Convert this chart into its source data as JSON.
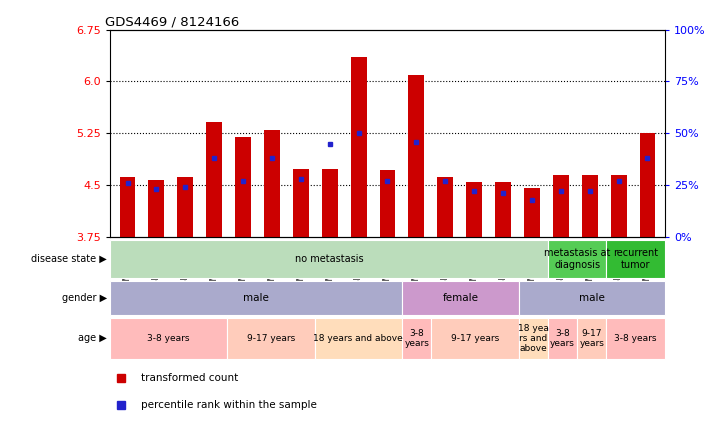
{
  "title": "GDS4469 / 8124166",
  "samples": [
    "GSM1025530",
    "GSM1025531",
    "GSM1025532",
    "GSM1025546",
    "GSM1025535",
    "GSM1025544",
    "GSM1025545",
    "GSM1025537",
    "GSM1025542",
    "GSM1025543",
    "GSM1025540",
    "GSM1025528",
    "GSM1025534",
    "GSM1025541",
    "GSM1025536",
    "GSM1025538",
    "GSM1025533",
    "GSM1025529",
    "GSM1025539"
  ],
  "transformed_count": [
    4.62,
    4.57,
    4.62,
    5.42,
    5.2,
    5.3,
    4.73,
    4.73,
    6.35,
    4.72,
    6.1,
    4.62,
    4.55,
    4.55,
    4.46,
    4.65,
    4.65,
    4.65,
    5.25
  ],
  "percentile_rank": [
    26,
    23,
    24,
    38,
    27,
    38,
    28,
    45,
    50,
    27,
    46,
    27,
    22,
    21,
    18,
    22,
    22,
    27,
    38
  ],
  "ymin": 3.75,
  "ymax": 6.75,
  "yticks": [
    3.75,
    4.5,
    5.25,
    6.0,
    6.75
  ],
  "y2ticks": [
    0,
    25,
    50,
    75,
    100
  ],
  "bar_color": "#cc0000",
  "dot_color": "#2222cc",
  "background_color": "#ffffff",
  "disease_state_groups": [
    {
      "label": "no metastasis",
      "start": 0,
      "end": 15,
      "color": "#bbddbb"
    },
    {
      "label": "",
      "start": 15,
      "end": 15,
      "color": "#cccccc"
    },
    {
      "label": "metastasis at\ndiagnosis",
      "start": 15,
      "end": 17,
      "color": "#55cc55"
    },
    {
      "label": "recurrent\ntumor",
      "start": 17,
      "end": 19,
      "color": "#33bb33"
    }
  ],
  "gender_groups": [
    {
      "label": "male",
      "start": 0,
      "end": 10,
      "color": "#aaaacc"
    },
    {
      "label": "female",
      "start": 10,
      "end": 14,
      "color": "#cc99cc"
    },
    {
      "label": "male",
      "start": 14,
      "end": 19,
      "color": "#aaaacc"
    }
  ],
  "age_groups": [
    {
      "label": "3-8 years",
      "start": 0,
      "end": 4,
      "color": "#ffbbbb"
    },
    {
      "label": "9-17 years",
      "start": 4,
      "end": 7,
      "color": "#ffccbb"
    },
    {
      "label": "18 years and above",
      "start": 7,
      "end": 10,
      "color": "#ffddbb"
    },
    {
      "label": "3-8\nyears",
      "start": 10,
      "end": 11,
      "color": "#ffbbbb"
    },
    {
      "label": "9-17 years",
      "start": 11,
      "end": 14,
      "color": "#ffccbb"
    },
    {
      "label": "18 yea\nrs and\nabove",
      "start": 14,
      "end": 15,
      "color": "#ffddbb"
    },
    {
      "label": "3-8\nyears",
      "start": 15,
      "end": 16,
      "color": "#ffbbbb"
    },
    {
      "label": "9-17\nyears",
      "start": 16,
      "end": 17,
      "color": "#ffccbb"
    },
    {
      "label": "3-8 years",
      "start": 17,
      "end": 19,
      "color": "#ffbbbb"
    }
  ],
  "row_labels": [
    "disease state",
    "gender",
    "age"
  ],
  "legend_items": [
    {
      "label": "transformed count",
      "color": "#cc0000"
    },
    {
      "label": "percentile rank within the sample",
      "color": "#2222cc"
    }
  ]
}
